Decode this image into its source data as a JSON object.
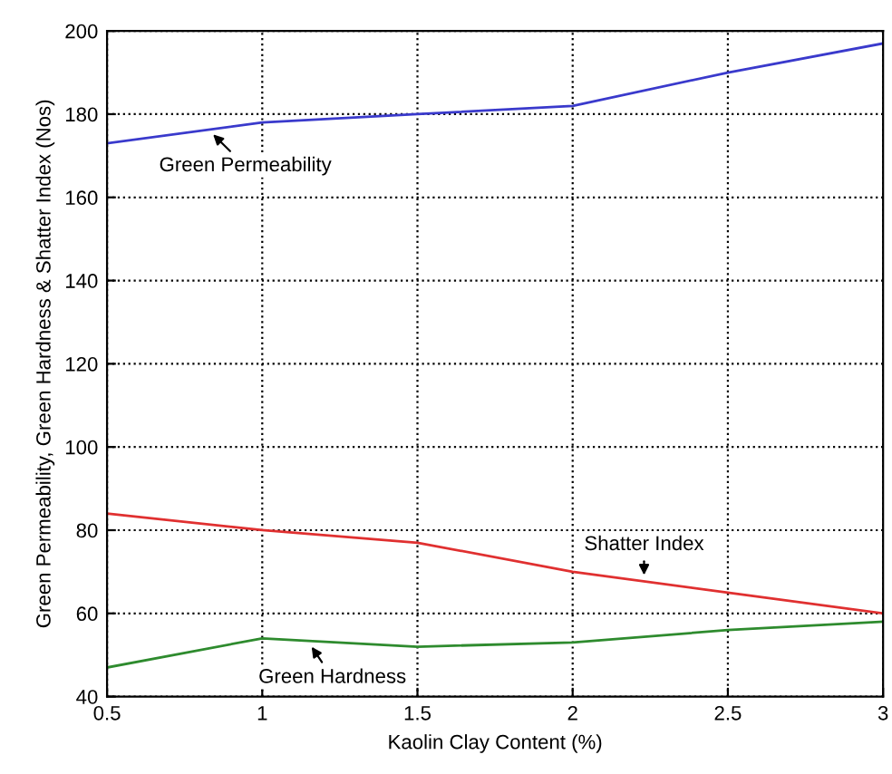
{
  "chart_data": {
    "type": "line",
    "xlabel": "Kaolin Clay Content (%)",
    "ylabel": "Green Permeability, Green Hardness & Shatter Index (Nos)",
    "x": [
      0.5,
      1,
      1.5,
      2,
      2.5,
      3
    ],
    "series": [
      {
        "color": "#3a3acc",
        "values": [
          173,
          178,
          180,
          182,
          190,
          197
        ]
      },
      {
        "color": "#e03030",
        "values": [
          84,
          80,
          77,
          70,
          65,
          60
        ]
      },
      {
        "color": "#2e8b2e",
        "values": [
          47,
          54,
          52,
          53,
          56,
          58
        ]
      }
    ],
    "annotations": [
      {
        "text": "Green Permeability",
        "x": 0.83,
        "y": 176
      },
      {
        "text": "Shatter Index",
        "x": 2.23,
        "y": 68
      },
      {
        "text": "Green Hardness",
        "x": 1.15,
        "y": 53
      }
    ],
    "xlim": [
      0.5,
      3
    ],
    "xticks": [
      0.5,
      1,
      1.5,
      2,
      2.5,
      3
    ],
    "ylim": [
      40,
      200
    ],
    "yticks": [
      40,
      60,
      80,
      100,
      120,
      140,
      160,
      180,
      200
    ],
    "grid": true
  }
}
